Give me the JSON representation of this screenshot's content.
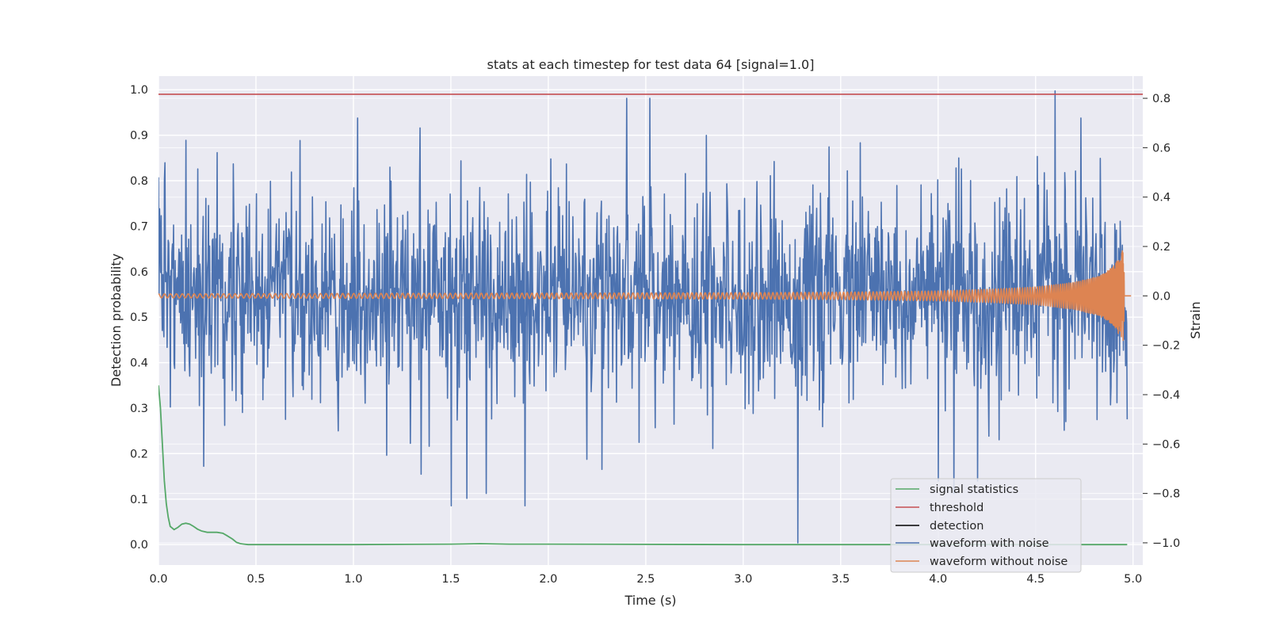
{
  "chart_data": {
    "type": "line",
    "title": "stats at each timestep for test data 64 [signal=1.0]",
    "xlabel": "Time (s)",
    "ylabel": "Detection probability",
    "y2label": "Strain",
    "xlim": [
      0.0,
      5.05
    ],
    "ylim": [
      -0.045,
      1.03
    ],
    "y2lim": [
      -1.09,
      0.89
    ],
    "xticks": [
      "0.0",
      "0.5",
      "1.0",
      "1.5",
      "2.0",
      "2.5",
      "3.0",
      "3.5",
      "4.0",
      "4.5",
      "5.0"
    ],
    "yticks": [
      "0.0",
      "0.1",
      "0.2",
      "0.3",
      "0.4",
      "0.5",
      "0.6",
      "0.7",
      "0.8",
      "0.9",
      "1.0"
    ],
    "y2ticks": [
      "−1.0",
      "−0.8",
      "−0.6",
      "−0.4",
      "−0.2",
      "0.0",
      "0.2",
      "0.4",
      "0.6",
      "0.8"
    ],
    "grid": true,
    "legend_position": "lower-right",
    "colors": {
      "signal_statistics": "#55a868",
      "threshold": "#c44e52",
      "detection": "#000000",
      "waveform_with_noise": "#4c72b0",
      "waveform_without_noise": "#dd8452",
      "background": "#eaeaf2",
      "grid": "#ffffff"
    },
    "series": [
      {
        "name": "signal statistics",
        "axis": "left",
        "x": [
          0.0,
          0.01,
          0.02,
          0.03,
          0.04,
          0.05,
          0.06,
          0.08,
          0.1,
          0.12,
          0.14,
          0.16,
          0.18,
          0.2,
          0.22,
          0.25,
          0.28,
          0.3,
          0.33,
          0.35,
          0.38,
          0.4,
          0.42,
          0.44,
          0.46,
          0.5,
          0.7,
          1.0,
          1.5,
          1.65,
          1.8,
          2.0,
          3.0,
          4.0,
          4.5,
          4.97
        ],
        "values": [
          0.35,
          0.3,
          0.22,
          0.14,
          0.09,
          0.06,
          0.04,
          0.033,
          0.038,
          0.045,
          0.047,
          0.045,
          0.04,
          0.034,
          0.03,
          0.027,
          0.027,
          0.027,
          0.025,
          0.02,
          0.012,
          0.005,
          0.002,
          0.001,
          0.0,
          0.0,
          0.0,
          0.0,
          0.001,
          0.002,
          0.001,
          0.001,
          0.0,
          0.0,
          0.0,
          0.0
        ]
      },
      {
        "name": "threshold",
        "axis": "left",
        "x": [
          0.0,
          5.05
        ],
        "values": [
          0.99,
          0.99
        ]
      },
      {
        "name": "detection",
        "axis": "left",
        "x": [],
        "values": []
      },
      {
        "name": "waveform with noise",
        "axis": "right",
        "noise_std": 0.2,
        "x": [
          0.0,
          0.06,
          0.14,
          0.23,
          0.3,
          0.65,
          1.02,
          1.34,
          1.5,
          1.58,
          1.68,
          1.88,
          2.4,
          2.52,
          2.81,
          3.28,
          3.6,
          4.0,
          4.08,
          4.2,
          4.6,
          4.73,
          4.97
        ],
        "values": [
          0.48,
          -0.45,
          0.63,
          -0.69,
          0.58,
          -0.5,
          0.72,
          0.68,
          -0.85,
          -0.82,
          -0.8,
          -0.85,
          0.8,
          0.8,
          0.65,
          -1.0,
          0.62,
          -0.75,
          -0.8,
          -0.75,
          0.83,
          0.72,
          -0.5
        ]
      },
      {
        "name": "waveform without noise",
        "axis": "right",
        "chirp_end_time": 4.955,
        "envelope": {
          "x": [
            0.0,
            1.0,
            2.0,
            3.0,
            3.5,
            4.0,
            4.3,
            4.5,
            4.7,
            4.8,
            4.85,
            4.9,
            4.93,
            4.95,
            4.96,
            5.0
          ],
          "values": [
            0.008,
            0.01,
            0.011,
            0.013,
            0.015,
            0.02,
            0.028,
            0.036,
            0.055,
            0.075,
            0.09,
            0.12,
            0.16,
            0.19,
            0.0,
            0.0
          ]
        }
      }
    ]
  }
}
